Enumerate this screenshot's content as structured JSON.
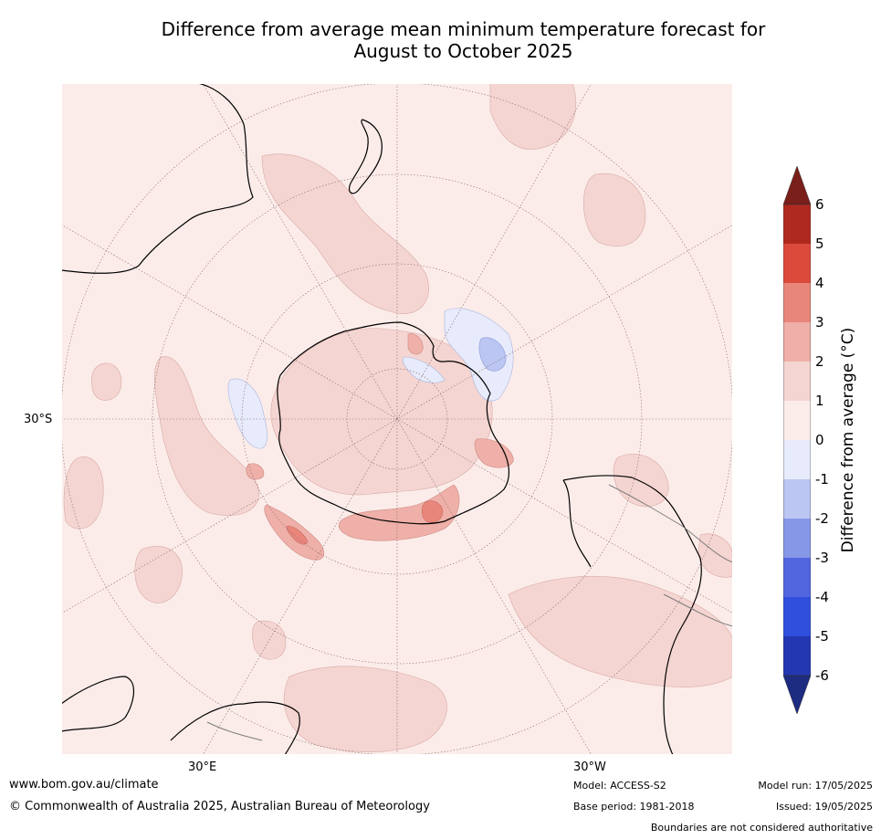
{
  "title_line1": "Difference from average mean minimum temperature forecast for",
  "title_line2": "August to October 2025",
  "map": {
    "lat_label": "30°S",
    "lon_labels": [
      "30°E",
      "30°W"
    ]
  },
  "colorbar": {
    "label": "Difference from average (°C)",
    "ticks": [
      "6",
      "5",
      "4",
      "3",
      "2",
      "1",
      "0",
      "-1",
      "-2",
      "-3",
      "-4",
      "-5",
      "-6"
    ],
    "colors": {
      "over": "#7a1f1a",
      "c6": "#b0291f",
      "c5": "#dc4a3c",
      "c4": "#e9867b",
      "c3": "#eeb0a8",
      "c2": "#f4d5d1",
      "c1": "#fbecea",
      "cm1": "#e7ebfb",
      "cm2": "#bcc6f2",
      "cm3": "#8797e8",
      "cm4": "#5266e0",
      "cm5": "#2f4fdc",
      "cm6": "#2437b2",
      "under": "#1d2b80"
    }
  },
  "footer": {
    "url": "www.bom.gov.au/climate",
    "copyright": "© Commonwealth of Australia 2025, Australian Bureau of Meteorology",
    "model": "Model: ACCESS-S2",
    "base_period": "Base period: 1981-2018",
    "model_run": "Model run: 17/05/2025",
    "issued": "Issued: 19/05/2025",
    "disclaimer": "Boundaries are not considered authoritative"
  }
}
